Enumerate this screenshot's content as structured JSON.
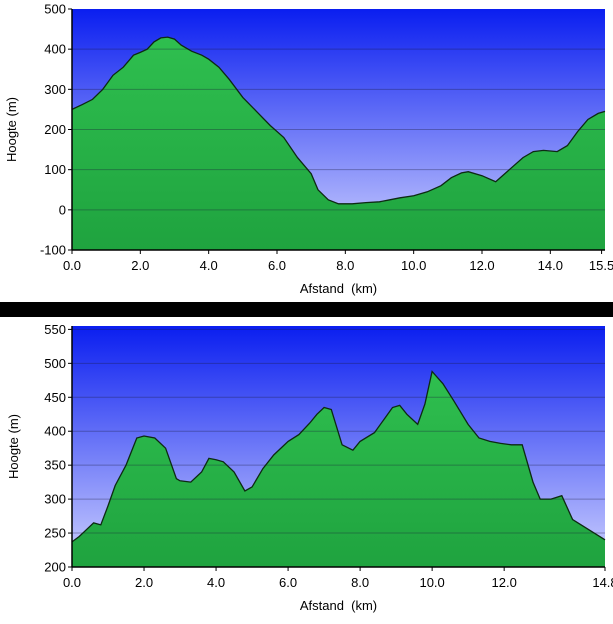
{
  "chart_data": [
    {
      "type": "area",
      "xlabel": "Afstand  (km)",
      "ylabel": "Hoogte (m)",
      "xlim": [
        0,
        15.6
      ],
      "ylim": [
        -100,
        500
      ],
      "xticks": [
        "0.0",
        "2.0",
        "4.0",
        "6.0",
        "8.0",
        "10.0",
        "12.0",
        "14.0",
        "15.5"
      ],
      "yticks": [
        "500",
        "400",
        "300",
        "200",
        "100",
        "0",
        "-100"
      ],
      "grid": true,
      "legend": "none",
      "fill_color": "#1fa33f",
      "line_color": "#0d2a12",
      "sky_top": "#0a1ef0",
      "sky_bottom": "#cfd2ff",
      "x": [
        0.0,
        0.3,
        0.6,
        0.9,
        1.2,
        1.5,
        1.8,
        2.0,
        2.2,
        2.4,
        2.6,
        2.8,
        3.0,
        3.2,
        3.5,
        3.8,
        4.0,
        4.3,
        4.6,
        5.0,
        5.4,
        5.8,
        6.2,
        6.6,
        7.0,
        7.2,
        7.5,
        7.8,
        8.2,
        8.6,
        9.0,
        9.3,
        9.6,
        10.0,
        10.4,
        10.8,
        11.1,
        11.4,
        11.6,
        12.0,
        12.4,
        12.8,
        13.2,
        13.5,
        13.8,
        14.2,
        14.5,
        14.8,
        15.1,
        15.4,
        15.6
      ],
      "y": [
        250,
        262,
        275,
        300,
        335,
        355,
        385,
        392,
        400,
        418,
        428,
        430,
        425,
        410,
        395,
        385,
        375,
        355,
        325,
        280,
        245,
        210,
        180,
        130,
        90,
        50,
        25,
        15,
        15,
        18,
        20,
        25,
        30,
        35,
        45,
        60,
        80,
        92,
        95,
        85,
        70,
        100,
        130,
        145,
        148,
        145,
        160,
        195,
        225,
        240,
        245
      ]
    },
    {
      "type": "area",
      "xlabel": "Afstand  (km)",
      "ylabel": "Hoogte (m)",
      "xlim": [
        0,
        14.8
      ],
      "ylim": [
        200,
        555
      ],
      "xticks": [
        "0.0",
        "2.0",
        "4.0",
        "6.0",
        "8.0",
        "10.0",
        "12.0",
        "14.8"
      ],
      "yticks": [
        "550",
        "500",
        "450",
        "400",
        "350",
        "300",
        "250",
        "200"
      ],
      "grid": true,
      "legend": "none",
      "fill_color": "#1fa33f",
      "line_color": "#0d2a12",
      "sky_top": "#0a1ef0",
      "sky_bottom": "#cfd2ff",
      "x": [
        0.0,
        0.2,
        0.4,
        0.6,
        0.8,
        1.0,
        1.2,
        1.5,
        1.8,
        2.0,
        2.3,
        2.6,
        2.9,
        3.0,
        3.3,
        3.6,
        3.8,
        4.0,
        4.2,
        4.5,
        4.8,
        5.0,
        5.3,
        5.6,
        6.0,
        6.3,
        6.6,
        6.8,
        7.0,
        7.2,
        7.5,
        7.8,
        8.0,
        8.4,
        8.7,
        8.9,
        9.1,
        9.3,
        9.6,
        9.8,
        10.0,
        10.3,
        10.6,
        11.0,
        11.3,
        11.6,
        11.9,
        12.2,
        12.5,
        12.8,
        13.0,
        13.3,
        13.6,
        13.9,
        14.2,
        14.5,
        14.8
      ],
      "y": [
        237,
        245,
        255,
        265,
        262,
        290,
        320,
        350,
        390,
        393,
        390,
        375,
        330,
        327,
        325,
        340,
        360,
        358,
        355,
        340,
        312,
        318,
        345,
        365,
        385,
        395,
        412,
        425,
        435,
        432,
        380,
        372,
        385,
        398,
        420,
        435,
        438,
        425,
        410,
        440,
        488,
        470,
        445,
        410,
        390,
        385,
        382,
        380,
        380,
        325,
        300,
        300,
        305,
        270,
        260,
        250,
        240
      ]
    }
  ]
}
